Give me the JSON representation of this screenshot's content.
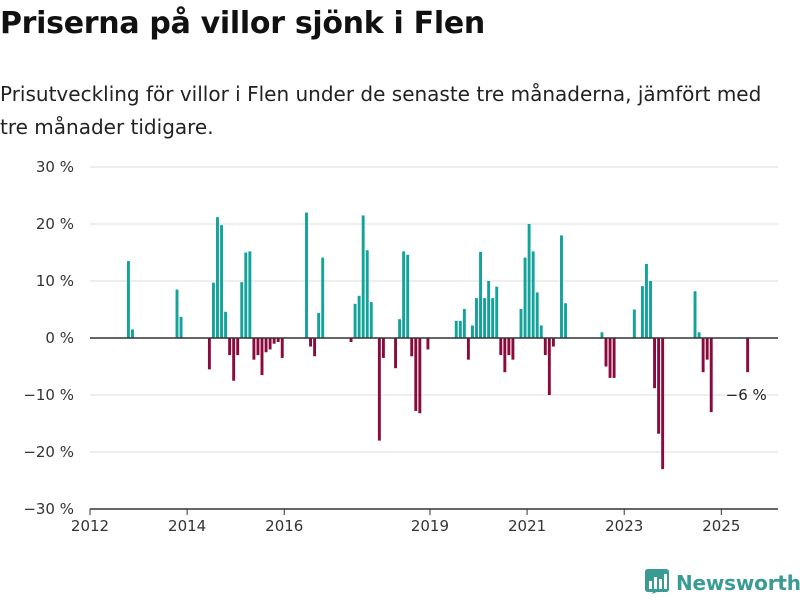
{
  "header": {
    "title": "Priserna på villor sjönk i Flen",
    "subtitle": "Prisutveckling för villor i Flen under de senaste tre månaderna, jämfört med tre månader tidigare."
  },
  "brand": {
    "name": "Newsworthy",
    "icon": "bar-chart-logo-icon",
    "color": "#3a9b94"
  },
  "colors": {
    "positive": "#12a39a",
    "negative": "#8b0a3e",
    "grid": "#dddddd",
    "zero_line": "#333333"
  },
  "chart_data": {
    "type": "bar",
    "title": "Priserna på villor sjönk i Flen",
    "subtitle": "Prisutveckling för villor i Flen under de senaste tre månaderna, jämfört med tre månader tidigare.",
    "xlabel": "",
    "ylabel": "",
    "unit": "%",
    "ylim": [
      -30,
      30
    ],
    "yticks": [
      30,
      20,
      10,
      0,
      -10,
      -20,
      -30
    ],
    "ytick_labels": [
      "30 %",
      "20 %",
      "10 %",
      "0 %",
      "−10 %",
      "−20 %",
      "−30 %"
    ],
    "xticks": [
      {
        "label": "2012",
        "date": "2012-01"
      },
      {
        "label": "2014",
        "date": "2014-01"
      },
      {
        "label": "2016",
        "date": "2016-01"
      },
      {
        "label": "2019",
        "date": "2019-01"
      },
      {
        "label": "2021",
        "date": "2021-01"
      },
      {
        "label": "2023",
        "date": "2023-01"
      },
      {
        "label": "2025",
        "date": "2025-01"
      }
    ],
    "x_range": [
      "2012-01",
      "2026-03"
    ],
    "grid": true,
    "legend": "none",
    "end_label": {
      "text": "−6 %",
      "date": "2025-07"
    },
    "series": [
      {
        "points": [
          {
            "date": "2012-10",
            "value": 13.5
          },
          {
            "date": "2012-11",
            "value": 1.5
          },
          {
            "date": "2013-10",
            "value": 8.5
          },
          {
            "date": "2013-11",
            "value": 3.7
          },
          {
            "date": "2014-06",
            "value": -5.5
          },
          {
            "date": "2014-07",
            "value": 9.7
          },
          {
            "date": "2014-08",
            "value": 21.2
          },
          {
            "date": "2014-09",
            "value": 19.8
          },
          {
            "date": "2014-10",
            "value": 4.6
          },
          {
            "date": "2014-11",
            "value": -3.0
          },
          {
            "date": "2014-12",
            "value": -7.5
          },
          {
            "date": "2015-01",
            "value": -3.0
          },
          {
            "date": "2015-02",
            "value": 9.8
          },
          {
            "date": "2015-03",
            "value": 15.0
          },
          {
            "date": "2015-04",
            "value": 15.2
          },
          {
            "date": "2015-05",
            "value": -3.8
          },
          {
            "date": "2015-06",
            "value": -3.0
          },
          {
            "date": "2015-07",
            "value": -6.5
          },
          {
            "date": "2015-08",
            "value": -2.5
          },
          {
            "date": "2015-09",
            "value": -2.0
          },
          {
            "date": "2015-10",
            "value": -1.0
          },
          {
            "date": "2015-11",
            "value": -0.7
          },
          {
            "date": "2015-12",
            "value": -3.5
          },
          {
            "date": "2016-06",
            "value": 22.0
          },
          {
            "date": "2016-07",
            "value": -1.5
          },
          {
            "date": "2016-08",
            "value": -3.2
          },
          {
            "date": "2016-09",
            "value": 4.4
          },
          {
            "date": "2016-10",
            "value": 14.1
          },
          {
            "date": "2017-05",
            "value": -0.7
          },
          {
            "date": "2017-06",
            "value": 6.0
          },
          {
            "date": "2017-07",
            "value": 7.4
          },
          {
            "date": "2017-08",
            "value": 21.5
          },
          {
            "date": "2017-09",
            "value": 15.4
          },
          {
            "date": "2017-10",
            "value": 6.3
          },
          {
            "date": "2017-12",
            "value": -18.0
          },
          {
            "date": "2018-01",
            "value": -3.5
          },
          {
            "date": "2018-04",
            "value": -5.3
          },
          {
            "date": "2018-05",
            "value": 3.3
          },
          {
            "date": "2018-06",
            "value": 15.2
          },
          {
            "date": "2018-07",
            "value": 14.6
          },
          {
            "date": "2018-08",
            "value": -3.2
          },
          {
            "date": "2018-09",
            "value": -12.8
          },
          {
            "date": "2018-10",
            "value": -13.2
          },
          {
            "date": "2018-12",
            "value": -2.0
          },
          {
            "date": "2019-07",
            "value": 3.0
          },
          {
            "date": "2019-08",
            "value": 3.0
          },
          {
            "date": "2019-09",
            "value": 5.1
          },
          {
            "date": "2019-10",
            "value": -3.8
          },
          {
            "date": "2019-11",
            "value": 2.2
          },
          {
            "date": "2019-12",
            "value": 7.0
          },
          {
            "date": "2020-01",
            "value": 15.1
          },
          {
            "date": "2020-02",
            "value": 7.0
          },
          {
            "date": "2020-03",
            "value": 10.0
          },
          {
            "date": "2020-04",
            "value": 7.0
          },
          {
            "date": "2020-05",
            "value": 9.0
          },
          {
            "date": "2020-06",
            "value": -3.0
          },
          {
            "date": "2020-07",
            "value": -6.0
          },
          {
            "date": "2020-08",
            "value": -3.0
          },
          {
            "date": "2020-09",
            "value": -3.8
          },
          {
            "date": "2020-11",
            "value": 5.1
          },
          {
            "date": "2020-12",
            "value": 14.1
          },
          {
            "date": "2021-01",
            "value": 20.0
          },
          {
            "date": "2021-02",
            "value": 15.2
          },
          {
            "date": "2021-03",
            "value": 8.0
          },
          {
            "date": "2021-04",
            "value": 2.2
          },
          {
            "date": "2021-05",
            "value": -3.0
          },
          {
            "date": "2021-06",
            "value": -10.0
          },
          {
            "date": "2021-07",
            "value": -1.5
          },
          {
            "date": "2021-09",
            "value": 18.0
          },
          {
            "date": "2021-10",
            "value": 6.1
          },
          {
            "date": "2022-07",
            "value": 1.0
          },
          {
            "date": "2022-08",
            "value": -5.0
          },
          {
            "date": "2022-09",
            "value": -7.0
          },
          {
            "date": "2022-10",
            "value": -7.0
          },
          {
            "date": "2023-03",
            "value": 5.0
          },
          {
            "date": "2023-05",
            "value": 9.1
          },
          {
            "date": "2023-06",
            "value": 13.0
          },
          {
            "date": "2023-07",
            "value": 10.0
          },
          {
            "date": "2023-08",
            "value": -8.8
          },
          {
            "date": "2023-09",
            "value": -16.8
          },
          {
            "date": "2023-10",
            "value": -23.0
          },
          {
            "date": "2024-06",
            "value": 8.2
          },
          {
            "date": "2024-07",
            "value": 1.0
          },
          {
            "date": "2024-08",
            "value": -6.0
          },
          {
            "date": "2024-09",
            "value": -3.8
          },
          {
            "date": "2024-10",
            "value": -13.0
          },
          {
            "date": "2025-07",
            "value": -6.0
          }
        ]
      }
    ]
  }
}
